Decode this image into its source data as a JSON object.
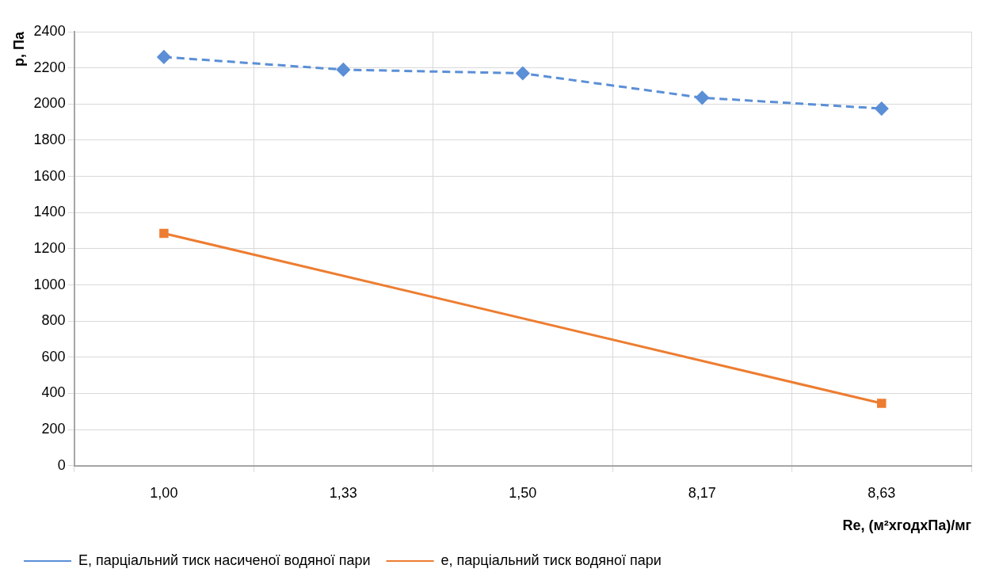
{
  "chart_data": {
    "type": "line",
    "xlabel": "Re, (м²хгодхПа)/мг",
    "ylabel": "р, Па",
    "categories": [
      "1,00",
      "1,33",
      "1,50",
      "8,17",
      "8,63"
    ],
    "series": [
      {
        "name": "Е, парціальний тиск насиченої водяної пари",
        "color": "#5b8fd6",
        "values": [
          2260,
          2190,
          2170,
          2035,
          1975
        ],
        "marker": "diamond",
        "line_style": "dashed"
      },
      {
        "name": "е, парціальний тиск водяної пари",
        "color": "#ed7d31",
        "values": [
          1285,
          null,
          null,
          null,
          345
        ],
        "marker": "square",
        "line_style": "solid"
      }
    ],
    "ylim": [
      0,
      2400
    ],
    "yticks": [
      0,
      200,
      400,
      600,
      800,
      1000,
      1200,
      1400,
      1600,
      1800,
      2000,
      2200,
      2400
    ],
    "grid": true,
    "legend": "bottom"
  }
}
